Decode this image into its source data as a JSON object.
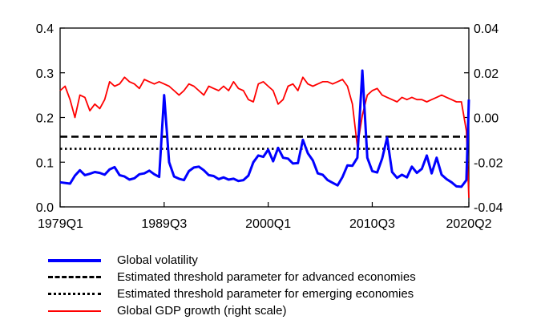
{
  "chart_data": {
    "type": "line",
    "x_tick_labels": [
      "1979Q1",
      "1989Q3",
      "2000Q1",
      "2010Q3",
      "2020Q2"
    ],
    "x_range": [
      "1979Q1",
      "2020Q2"
    ],
    "y_left": {
      "ylim": [
        0,
        0.4
      ],
      "ticks": [
        "0.0",
        "0.1",
        "0.2",
        "0.3",
        "0.4"
      ]
    },
    "y_right": {
      "ylim": [
        -0.04,
        0.04
      ],
      "ticks": [
        "-0.04",
        "-0.02",
        "0.00",
        "0.02",
        "0.04"
      ]
    },
    "legend_placement": "bottom",
    "series": [
      {
        "name": "Global volatility",
        "axis": "left",
        "color": "#0000ff",
        "style": "solid",
        "points": [
          [
            "1979Q1",
            0.055
          ],
          [
            "1980Q1",
            0.052
          ],
          [
            "1980Q3",
            0.07
          ],
          [
            "1981Q1",
            0.082
          ],
          [
            "1981Q3",
            0.071
          ],
          [
            "1982Q1",
            0.074
          ],
          [
            "1982Q3",
            0.078
          ],
          [
            "1983Q1",
            0.076
          ],
          [
            "1983Q3",
            0.072
          ],
          [
            "1984Q1",
            0.084
          ],
          [
            "1984Q3",
            0.089
          ],
          [
            "1985Q1",
            0.071
          ],
          [
            "1985Q3",
            0.068
          ],
          [
            "1986Q1",
            0.061
          ],
          [
            "1986Q3",
            0.064
          ],
          [
            "1987Q1",
            0.073
          ],
          [
            "1987Q3",
            0.075
          ],
          [
            "1988Q1",
            0.081
          ],
          [
            "1988Q3",
            0.073
          ],
          [
            "1989Q1",
            0.067
          ],
          [
            "1989Q3",
            0.25
          ],
          [
            "1990Q1",
            0.1
          ],
          [
            "1990Q3",
            0.068
          ],
          [
            "1991Q1",
            0.063
          ],
          [
            "1991Q3",
            0.06
          ],
          [
            "1992Q1",
            0.08
          ],
          [
            "1992Q3",
            0.088
          ],
          [
            "1993Q1",
            0.09
          ],
          [
            "1993Q3",
            0.082
          ],
          [
            "1994Q1",
            0.071
          ],
          [
            "1994Q3",
            0.069
          ],
          [
            "1995Q1",
            0.062
          ],
          [
            "1995Q3",
            0.066
          ],
          [
            "1996Q1",
            0.061
          ],
          [
            "1996Q3",
            0.063
          ],
          [
            "1997Q1",
            0.058
          ],
          [
            "1997Q3",
            0.06
          ],
          [
            "1998Q1",
            0.07
          ],
          [
            "1998Q3",
            0.1
          ],
          [
            "1999Q1",
            0.115
          ],
          [
            "1999Q3",
            0.112
          ],
          [
            "2000Q1",
            0.128
          ],
          [
            "2000Q3",
            0.102
          ],
          [
            "2001Q1",
            0.132
          ],
          [
            "2001Q3",
            0.11
          ],
          [
            "2002Q1",
            0.108
          ],
          [
            "2002Q3",
            0.097
          ],
          [
            "2003Q1",
            0.098
          ],
          [
            "2003Q3",
            0.15
          ],
          [
            "2004Q1",
            0.12
          ],
          [
            "2004Q3",
            0.104
          ],
          [
            "2005Q1",
            0.075
          ],
          [
            "2005Q3",
            0.072
          ],
          [
            "2006Q1",
            0.06
          ],
          [
            "2006Q3",
            0.054
          ],
          [
            "2007Q1",
            0.048
          ],
          [
            "2007Q3",
            0.067
          ],
          [
            "2008Q1",
            0.093
          ],
          [
            "2008Q3",
            0.092
          ],
          [
            "2009Q1",
            0.11
          ],
          [
            "2009Q3",
            0.305
          ],
          [
            "2010Q1",
            0.11
          ],
          [
            "2010Q3",
            0.08
          ],
          [
            "2011Q1",
            0.077
          ],
          [
            "2011Q3",
            0.108
          ],
          [
            "2012Q1",
            0.155
          ],
          [
            "2012Q3",
            0.078
          ],
          [
            "2013Q1",
            0.065
          ],
          [
            "2013Q3",
            0.072
          ],
          [
            "2014Q1",
            0.066
          ],
          [
            "2014Q3",
            0.09
          ],
          [
            "2015Q1",
            0.076
          ],
          [
            "2015Q3",
            0.085
          ],
          [
            "2016Q1",
            0.115
          ],
          [
            "2016Q3",
            0.075
          ],
          [
            "2017Q1",
            0.11
          ],
          [
            "2017Q3",
            0.072
          ],
          [
            "2018Q1",
            0.062
          ],
          [
            "2018Q3",
            0.055
          ],
          [
            "2019Q1",
            0.046
          ],
          [
            "2019Q3",
            0.045
          ],
          [
            "2020Q1",
            0.06
          ],
          [
            "2020Q2",
            0.24
          ]
        ]
      },
      {
        "name": "Estimated threshold parameter for advanced economies",
        "axis": "left",
        "color": "#000000",
        "style": "dashed",
        "value": 0.157
      },
      {
        "name": "Estimated threshold parameter for emerging economies",
        "axis": "left",
        "color": "#000000",
        "style": "dotted",
        "value": 0.13
      },
      {
        "name": "Global GDP growth (right scale)",
        "axis": "right",
        "color": "#ff0000",
        "style": "solid",
        "points": [
          [
            "1979Q1",
            0.012
          ],
          [
            "1979Q3",
            0.014
          ],
          [
            "1980Q1",
            0.008
          ],
          [
            "1980Q3",
            0.0
          ],
          [
            "1981Q1",
            0.01
          ],
          [
            "1981Q3",
            0.009
          ],
          [
            "1982Q1",
            0.003
          ],
          [
            "1982Q3",
            0.006
          ],
          [
            "1983Q1",
            0.004
          ],
          [
            "1983Q3",
            0.008
          ],
          [
            "1984Q1",
            0.016
          ],
          [
            "1984Q3",
            0.014
          ],
          [
            "1985Q1",
            0.015
          ],
          [
            "1985Q3",
            0.018
          ],
          [
            "1986Q1",
            0.016
          ],
          [
            "1986Q3",
            0.015
          ],
          [
            "1987Q1",
            0.013
          ],
          [
            "1987Q3",
            0.017
          ],
          [
            "1988Q1",
            0.016
          ],
          [
            "1988Q3",
            0.015
          ],
          [
            "1989Q1",
            0.016
          ],
          [
            "1989Q3",
            0.015
          ],
          [
            "1990Q1",
            0.014
          ],
          [
            "1990Q3",
            0.012
          ],
          [
            "1991Q1",
            0.01
          ],
          [
            "1991Q3",
            0.012
          ],
          [
            "1992Q1",
            0.015
          ],
          [
            "1992Q3",
            0.014
          ],
          [
            "1993Q1",
            0.012
          ],
          [
            "1993Q3",
            0.01
          ],
          [
            "1994Q1",
            0.014
          ],
          [
            "1994Q3",
            0.013
          ],
          [
            "1995Q1",
            0.012
          ],
          [
            "1995Q3",
            0.014
          ],
          [
            "1996Q1",
            0.012
          ],
          [
            "1996Q3",
            0.016
          ],
          [
            "1997Q1",
            0.013
          ],
          [
            "1997Q3",
            0.012
          ],
          [
            "1998Q1",
            0.008
          ],
          [
            "1998Q3",
            0.007
          ],
          [
            "1999Q1",
            0.015
          ],
          [
            "1999Q3",
            0.016
          ],
          [
            "2000Q1",
            0.014
          ],
          [
            "2000Q3",
            0.012
          ],
          [
            "2001Q1",
            0.006
          ],
          [
            "2001Q3",
            0.008
          ],
          [
            "2002Q1",
            0.014
          ],
          [
            "2002Q3",
            0.015
          ],
          [
            "2003Q1",
            0.012
          ],
          [
            "2003Q3",
            0.018
          ],
          [
            "2004Q1",
            0.015
          ],
          [
            "2004Q3",
            0.014
          ],
          [
            "2005Q1",
            0.015
          ],
          [
            "2005Q3",
            0.016
          ],
          [
            "2006Q1",
            0.016
          ],
          [
            "2006Q3",
            0.015
          ],
          [
            "2007Q1",
            0.016
          ],
          [
            "2007Q3",
            0.017
          ],
          [
            "2008Q1",
            0.014
          ],
          [
            "2008Q3",
            0.006
          ],
          [
            "2009Q1",
            -0.013
          ],
          [
            "2009Q3",
            0.001
          ],
          [
            "2010Q1",
            0.01
          ],
          [
            "2010Q3",
            0.012
          ],
          [
            "2011Q1",
            0.013
          ],
          [
            "2011Q3",
            0.01
          ],
          [
            "2012Q1",
            0.009
          ],
          [
            "2012Q3",
            0.008
          ],
          [
            "2013Q1",
            0.007
          ],
          [
            "2013Q3",
            0.009
          ],
          [
            "2014Q1",
            0.008
          ],
          [
            "2014Q3",
            0.009
          ],
          [
            "2015Q1",
            0.008
          ],
          [
            "2015Q3",
            0.008
          ],
          [
            "2016Q1",
            0.007
          ],
          [
            "2016Q3",
            0.008
          ],
          [
            "2017Q1",
            0.009
          ],
          [
            "2017Q3",
            0.01
          ],
          [
            "2018Q1",
            0.009
          ],
          [
            "2018Q3",
            0.008
          ],
          [
            "2019Q1",
            0.007
          ],
          [
            "2019Q3",
            0.007
          ],
          [
            "2020Q1",
            -0.006
          ],
          [
            "2020Q2",
            -0.036
          ]
        ]
      }
    ]
  }
}
